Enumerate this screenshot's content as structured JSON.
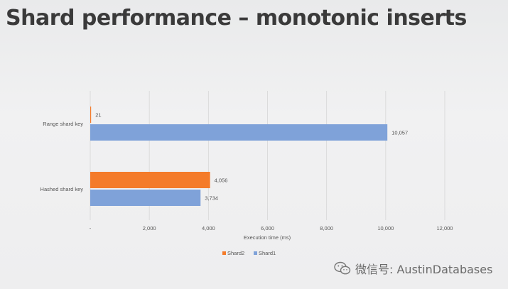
{
  "slide": {
    "title": "Shard performance – monotonic inserts"
  },
  "watermark": {
    "text": "微信号: AustinDatabases",
    "icon": "wechat-icon"
  },
  "colors": {
    "shard2": "#f47b2a",
    "shard1": "#7fa2d9",
    "grid": "#d6d6d6",
    "axis_text": "#555555"
  },
  "chart_data": {
    "type": "bar",
    "orientation": "horizontal",
    "categories": [
      "Range shard key",
      "Hashed shard key"
    ],
    "series": [
      {
        "name": "Shard2",
        "values": [
          21,
          4056
        ],
        "labels": [
          "21",
          "4,056"
        ]
      },
      {
        "name": "Shard1",
        "values": [
          10057,
          3734
        ],
        "labels": [
          "10,057",
          "3,734"
        ]
      }
    ],
    "xlabel": "Execution time (ms)",
    "ylabel": "",
    "xlim": [
      0,
      12000
    ],
    "xticks": [
      0,
      2000,
      4000,
      6000,
      8000,
      10000,
      12000
    ],
    "xtick_labels": [
      "-",
      "2,000",
      "4,000",
      "6,000",
      "8,000",
      "10,000",
      "12,000"
    ],
    "grid": true,
    "legend": "bottom"
  }
}
